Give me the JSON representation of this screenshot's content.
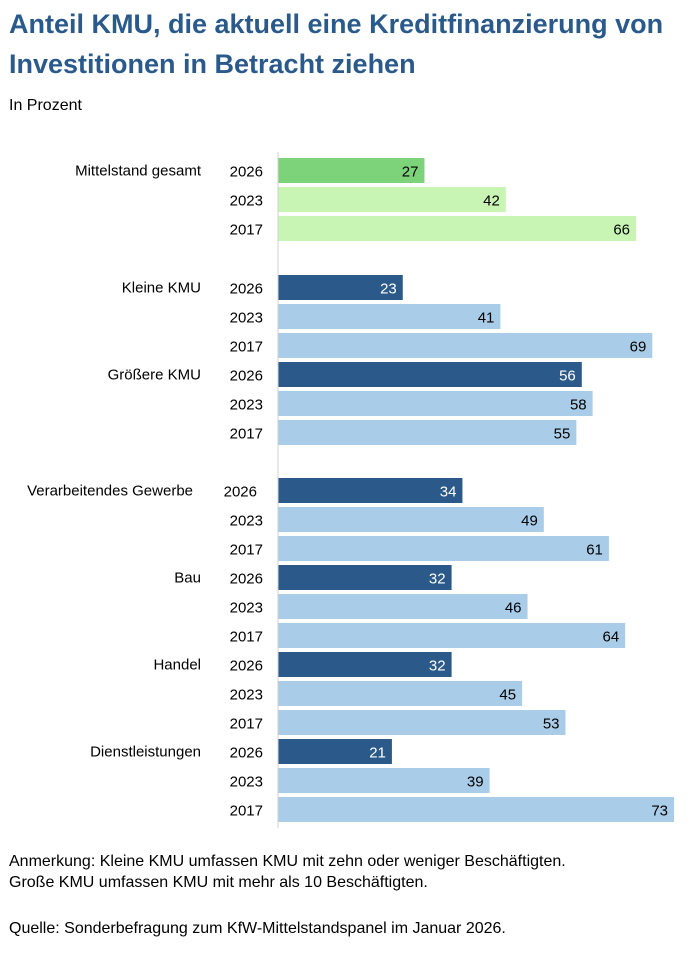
{
  "title": "Anteil KMU, die aktuell eine Kreditfinanzierung von Investitionen in Betracht ziehen",
  "subtitle": "In Prozent",
  "notes": {
    "line1": "Anmerkung: Kleine KMU umfassen KMU mit zehn oder weniger Beschäftigten.",
    "line2": "Große KMU umfassen KMU mit mehr als 10 Beschäftigten.",
    "source": "Quelle: Sonderbefragung zum KfW-Mittelstandspanel im Januar 2026."
  },
  "colors": {
    "title": "#2a5a8c",
    "total_current": "#7dd37a",
    "total_past": "#c8f5b4",
    "segment_current": "#2b5a8a",
    "segment_past": "#a9cde8"
  },
  "chart_data": {
    "type": "bar",
    "orientation": "horizontal",
    "xlim": [
      0,
      73
    ],
    "grid": false,
    "legend": "none",
    "groups": [
      {
        "label": "Mittelstand gesamt",
        "years": [
          "2026",
          "2023",
          "2017"
        ],
        "values": [
          27,
          42,
          66
        ]
      },
      {
        "label": "Kleine KMU",
        "years": [
          "2026",
          "2023",
          "2017"
        ],
        "values": [
          23,
          41,
          69
        ]
      },
      {
        "label": "Größere KMU",
        "years": [
          "2026",
          "2023",
          "2017"
        ],
        "values": [
          56,
          58,
          55
        ]
      },
      {
        "label": "Verarbeitendes Gewerbe",
        "years": [
          "2026",
          "2023",
          "2017"
        ],
        "values": [
          34,
          49,
          61
        ]
      },
      {
        "label": "Bau",
        "years": [
          "2026",
          "2023",
          "2017"
        ],
        "values": [
          32,
          46,
          64
        ]
      },
      {
        "label": "Handel",
        "years": [
          "2026",
          "2023",
          "2017"
        ],
        "values": [
          32,
          45,
          53
        ]
      },
      {
        "label": "Dienstleistungen",
        "years": [
          "2026",
          "2023",
          "2017"
        ],
        "values": [
          21,
          39,
          73
        ]
      }
    ]
  }
}
